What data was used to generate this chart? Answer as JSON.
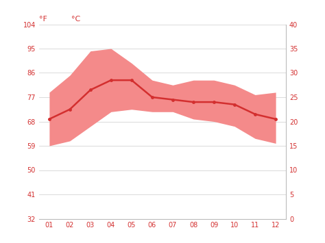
{
  "months": [
    1,
    2,
    3,
    4,
    5,
    6,
    7,
    8,
    9,
    10,
    11,
    12
  ],
  "month_labels": [
    "01",
    "02",
    "03",
    "04",
    "05",
    "06",
    "07",
    "08",
    "09",
    "10",
    "11",
    "12"
  ],
  "mean_temp_c": [
    20.5,
    22.5,
    26.5,
    28.5,
    28.5,
    25.0,
    24.5,
    24.0,
    24.0,
    23.5,
    21.5,
    20.5
  ],
  "high_temp_c": [
    26.0,
    29.5,
    34.5,
    35.0,
    32.0,
    28.5,
    27.5,
    28.5,
    28.5,
    27.5,
    25.5,
    26.0
  ],
  "low_temp_c": [
    15.0,
    16.0,
    19.0,
    22.0,
    22.5,
    22.0,
    22.0,
    20.5,
    20.0,
    19.0,
    16.5,
    15.5
  ],
  "yticks_c": [
    0,
    5,
    10,
    15,
    20,
    25,
    30,
    35,
    40
  ],
  "yticks_f": [
    32,
    41,
    50,
    59,
    68,
    77,
    86,
    95,
    104
  ],
  "ylim_c": [
    0,
    40
  ],
  "line_color": "#d32f2f",
  "band_color": "#f48a8a",
  "bg_color": "#ffffff",
  "grid_color": "#cccccc",
  "axis_label_color": "#d32f2f",
  "tick_color": "#d32f2f"
}
